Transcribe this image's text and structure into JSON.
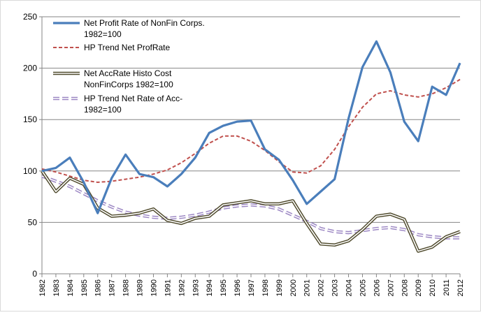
{
  "chart_data": {
    "type": "line",
    "categories": [
      "1982",
      "1983",
      "1984",
      "1985",
      "1986",
      "1987",
      "1988",
      "1989",
      "1990",
      "1991",
      "1992",
      "1993",
      "1994",
      "1995",
      "1996",
      "1997",
      "1998",
      "1999",
      "2000",
      "2001",
      "2002",
      "2003",
      "2004",
      "2005",
      "2006",
      "2007",
      "2008",
      "2009",
      "2010",
      "2011",
      "2012"
    ],
    "ylim": [
      0,
      250
    ],
    "yticks": [
      0,
      50,
      100,
      150,
      200,
      250
    ],
    "grid": "horizontal",
    "legend_position": "top-left",
    "series": [
      {
        "name": "Net Profit Rate of NonFin Corps. 1982=100",
        "legend_lines": [
          "Net Profit Rate of NonFin Corps.",
          "1982=100"
        ],
        "style": "solid",
        "color": "#4a7ebb",
        "values": [
          100,
          103,
          113,
          89,
          59,
          93,
          116,
          97,
          94,
          85,
          97,
          113,
          137,
          144,
          148,
          149,
          121,
          111,
          91,
          68,
          80,
          92,
          151,
          201,
          226,
          196,
          148,
          129,
          182,
          174,
          205
        ]
      },
      {
        "name": "HP Trend Net ProfRate",
        "legend_lines": [
          "HP Trend Net ProfRate"
        ],
        "style": "dashed",
        "color": "#c0504d",
        "values": [
          102,
          99,
          95,
          91,
          89,
          90,
          92,
          94,
          97,
          101,
          108,
          117,
          127,
          134,
          134,
          129,
          120,
          109,
          99,
          98,
          105,
          121,
          143,
          162,
          175,
          178,
          174,
          172,
          175,
          181,
          189
        ]
      },
      {
        "name": "Net AccRate Histo Cost NonFinCorps 1982=100",
        "legend_lines": [
          "Net AccRate Histo Cost",
          "NonFinCorps 1982=100"
        ],
        "style": "double",
        "color": "#4f4a2c",
        "values": [
          100,
          80,
          93,
          87,
          64,
          56,
          57,
          59,
          63,
          52,
          49,
          54,
          56,
          67,
          69,
          71,
          68,
          68,
          71,
          49,
          29,
          28,
          32,
          43,
          56,
          58,
          53,
          22,
          26,
          36,
          41
        ]
      },
      {
        "name": "HP Trend Net Rate of Acc- 1982=100",
        "legend_lines": [
          "HP Trend Net Rate of Acc-",
          "1982=100"
        ],
        "style": "dashed-double",
        "color": "#9b86c3",
        "values": [
          95,
          90,
          85,
          78,
          71,
          65,
          60,
          57,
          55,
          54,
          55,
          57,
          60,
          64,
          66,
          67,
          66,
          63,
          57,
          51,
          44,
          41,
          40,
          42,
          44,
          45,
          43,
          38,
          36,
          35,
          35
        ]
      }
    ]
  }
}
